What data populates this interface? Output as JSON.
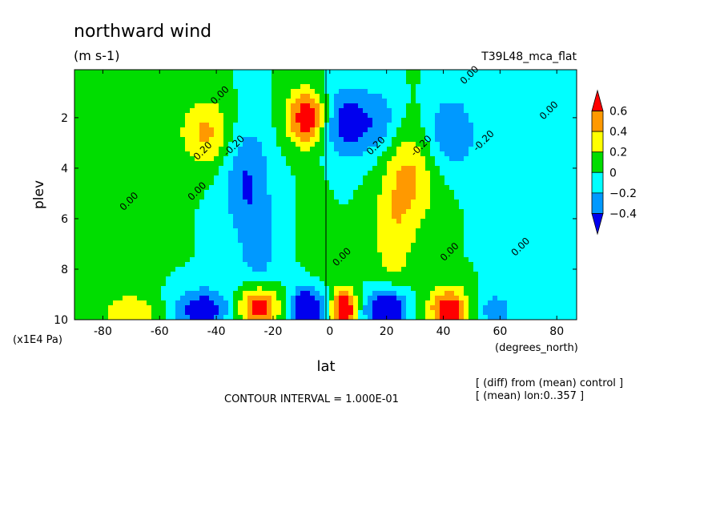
{
  "chart_data": {
    "type": "heatmap",
    "title": "northward wind",
    "units": "(m s-1)",
    "experiment": "T39L48_mca_flat",
    "xlabel": "lat",
    "xunits": "(degrees_north)",
    "ylabel": "plev",
    "yunits": "(x1E4 Pa)",
    "x_ticks": [
      -80,
      -60,
      -40,
      -20,
      0,
      20,
      40,
      60,
      80
    ],
    "x_tick_labels": [
      "-80",
      "-60",
      "-40",
      "-20",
      "0",
      "20",
      "40",
      "60",
      "80"
    ],
    "y_ticks": [
      2,
      4,
      6,
      8,
      10
    ],
    "y_tick_labels": [
      "2",
      "4",
      "6",
      "8",
      "10"
    ],
    "xlim": [
      -90,
      87
    ],
    "ylim": [
      10,
      0.1
    ],
    "colorbar": {
      "labels": [
        "0.6",
        "0.4",
        "0.2",
        "0",
        "−0.2",
        "−0.4"
      ],
      "levels": [
        0.6,
        0.4,
        0.2,
        0,
        -0.2,
        -0.4
      ],
      "colors": [
        "#ff0000",
        "#ff9900",
        "#ffff00",
        "#00dd00",
        "#00ffff",
        "#0099ff",
        "#0000ee"
      ]
    },
    "contour_labels": [
      "0.00",
      "0.20",
      "-0.20"
    ],
    "features": [
      {
        "lat": -43,
        "plev": 2.6,
        "value": 0.45,
        "sx": 7,
        "sy": 1.0
      },
      {
        "lat": -8,
        "plev": 2.0,
        "value": 0.8,
        "sx": 5,
        "sy": 0.8
      },
      {
        "lat": 5,
        "plev": 2.2,
        "value": -0.5,
        "sx": 6,
        "sy": 1.0
      },
      {
        "lat": 18,
        "plev": 2.2,
        "value": -0.35,
        "sx": 6,
        "sy": 1.0
      },
      {
        "lat": 42,
        "plev": 2.6,
        "value": -0.4,
        "sx": 7,
        "sy": 1.1
      },
      {
        "lat": -30,
        "plev": 4.2,
        "value": -0.4,
        "sx": 6,
        "sy": 1.6
      },
      {
        "lat": -25,
        "plev": 7.2,
        "value": -0.28,
        "sx": 5,
        "sy": 1.5
      },
      {
        "lat": 28,
        "plev": 4.2,
        "value": 0.45,
        "sx": 7,
        "sy": 1.6
      },
      {
        "lat": 22,
        "plev": 7.0,
        "value": 0.28,
        "sx": 5,
        "sy": 1.5
      },
      {
        "lat": -5,
        "plev": 6.5,
        "value": 0.12,
        "sx": 3,
        "sy": 1.5
      },
      {
        "lat": -70,
        "plev": 9.7,
        "value": 0.35,
        "sx": 7,
        "sy": 0.5
      },
      {
        "lat": -45,
        "plev": 9.6,
        "value": -0.55,
        "sx": 7,
        "sy": 0.6
      },
      {
        "lat": -25,
        "plev": 9.5,
        "value": 0.8,
        "sx": 5,
        "sy": 0.6
      },
      {
        "lat": -8,
        "plev": 9.6,
        "value": -0.8,
        "sx": 4,
        "sy": 0.6
      },
      {
        "lat": 5,
        "plev": 9.6,
        "value": 0.9,
        "sx": 3,
        "sy": 0.6
      },
      {
        "lat": 20,
        "plev": 9.6,
        "value": -0.8,
        "sx": 5,
        "sy": 0.6
      },
      {
        "lat": 42,
        "plev": 9.6,
        "value": 0.8,
        "sx": 5,
        "sy": 0.6
      },
      {
        "lat": 58,
        "plev": 9.6,
        "value": -0.3,
        "sx": 5,
        "sy": 0.5
      },
      {
        "lat": -75,
        "plev": 5.0,
        "value": 0.1,
        "sx": 10,
        "sy": 3.0
      },
      {
        "lat": 75,
        "plev": 5.0,
        "value": -0.1,
        "sx": 10,
        "sy": 3.0
      }
    ]
  },
  "footer": {
    "contour_interval": "CONTOUR INTERVAL = 1.000E-01",
    "note1": "[ (diff) from (mean) control ]",
    "note2": "[ (mean) lon:0..357 ]"
  }
}
